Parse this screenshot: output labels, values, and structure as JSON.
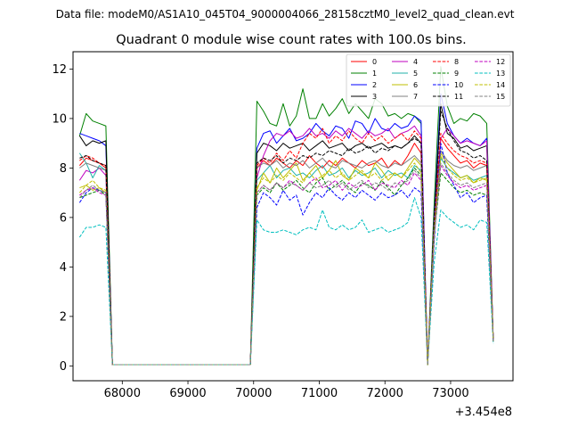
{
  "chart_data": {
    "type": "line",
    "suptitle": "Data file: modeM0/AS1A10_045T04_9000004066_28158cztM0_level2_quad_clean.evt",
    "title": "Quadrant 0 module wise count rates with 100.0s bins.",
    "xlabel": "",
    "ylabel": "",
    "x_offset_label": "+3.454e8",
    "xlim": [
      67250,
      73950
    ],
    "ylim": [
      -0.6,
      12.7
    ],
    "xticks": [
      68000,
      69000,
      70000,
      71000,
      72000,
      73000
    ],
    "xtick_labels": [
      "68000",
      "69000",
      "70000",
      "71000",
      "72000",
      "73000"
    ],
    "yticks": [
      0,
      2,
      4,
      6,
      8,
      10,
      12
    ],
    "ytick_labels": [
      "0",
      "2",
      "4",
      "6",
      "8",
      "10",
      "12"
    ],
    "legend_position": "top-right",
    "x": [
      67350,
      67450,
      67550,
      67650,
      67750,
      67850,
      67950,
      68050,
      68150,
      68250,
      68350,
      68450,
      68550,
      68650,
      68750,
      68850,
      68950,
      69050,
      69150,
      69250,
      69350,
      69450,
      69550,
      69650,
      69750,
      69850,
      69950,
      70050,
      70150,
      70250,
      70350,
      70450,
      70550,
      70650,
      70750,
      70850,
      70950,
      71050,
      71150,
      71250,
      71350,
      71450,
      71550,
      71650,
      71750,
      71850,
      71950,
      72050,
      72150,
      72250,
      72350,
      72450,
      72550,
      72650,
      72750,
      72850,
      72950,
      73050,
      73150,
      73250,
      73350,
      73450,
      73550,
      73650
    ],
    "series": [
      {
        "name": "0",
        "color": "#ff0000",
        "dash": "solid",
        "values": [
          8.1,
          8.4,
          8.3,
          8.2,
          8.0,
          0.05,
          0.05,
          0.05,
          0.05,
          0.05,
          0.05,
          0.05,
          0.05,
          0.05,
          0.05,
          0.05,
          0.05,
          0.05,
          0.05,
          0.05,
          0.05,
          0.05,
          0.05,
          0.05,
          0.05,
          0.05,
          0.05,
          8.0,
          8.3,
          8.1,
          8.4,
          8.2,
          8.0,
          8.3,
          8.1,
          8.5,
          8.2,
          8.0,
          8.3,
          8.1,
          8.4,
          8.2,
          8.0,
          8.3,
          8.1,
          8.2,
          8.4,
          8.0,
          8.3,
          8.1,
          8.5,
          9.0,
          8.6,
          0.05,
          5.5,
          9.2,
          8.8,
          8.5,
          8.2,
          8.3,
          8.0,
          8.2,
          8.1,
          1.0
        ]
      },
      {
        "name": "1",
        "color": "#008000",
        "dash": "solid",
        "values": [
          9.3,
          10.2,
          9.9,
          9.8,
          9.7,
          0.05,
          0.05,
          0.05,
          0.05,
          0.05,
          0.05,
          0.05,
          0.05,
          0.05,
          0.05,
          0.05,
          0.05,
          0.05,
          0.05,
          0.05,
          0.05,
          0.05,
          0.05,
          0.05,
          0.05,
          0.05,
          0.05,
          10.7,
          10.3,
          9.8,
          9.7,
          10.6,
          9.7,
          10.1,
          11.2,
          10.0,
          10.0,
          10.6,
          10.1,
          10.4,
          10.8,
          10.2,
          10.6,
          10.3,
          10.0,
          10.8,
          10.6,
          10.1,
          10.2,
          10.0,
          10.2,
          10.1,
          9.8,
          0.05,
          6.6,
          12.1,
          10.5,
          9.8,
          10.0,
          9.9,
          10.2,
          10.1,
          9.8,
          1.0
        ]
      },
      {
        "name": "2",
        "color": "#0000ff",
        "dash": "solid",
        "values": [
          9.4,
          9.3,
          9.2,
          9.1,
          8.9,
          0.05,
          0.05,
          0.05,
          0.05,
          0.05,
          0.05,
          0.05,
          0.05,
          0.05,
          0.05,
          0.05,
          0.05,
          0.05,
          0.05,
          0.05,
          0.05,
          0.05,
          0.05,
          0.05,
          0.05,
          0.05,
          0.05,
          8.8,
          9.4,
          9.5,
          9.0,
          9.3,
          9.6,
          9.1,
          9.2,
          9.4,
          9.8,
          9.5,
          9.3,
          9.7,
          9.6,
          9.2,
          9.9,
          9.8,
          9.4,
          10.0,
          9.6,
          9.5,
          9.8,
          9.6,
          9.7,
          10.1,
          9.9,
          0.05,
          6.0,
          11.0,
          9.8,
          9.3,
          9.0,
          9.2,
          9.0,
          8.9,
          9.2,
          1.0
        ]
      },
      {
        "name": "3",
        "color": "#000000",
        "dash": "solid",
        "values": [
          9.3,
          8.9,
          9.1,
          9.0,
          9.1,
          0.05,
          0.05,
          0.05,
          0.05,
          0.05,
          0.05,
          0.05,
          0.05,
          0.05,
          0.05,
          0.05,
          0.05,
          0.05,
          0.05,
          0.05,
          0.05,
          0.05,
          0.05,
          0.05,
          0.05,
          0.05,
          0.05,
          8.6,
          9.0,
          8.9,
          8.7,
          9.0,
          8.8,
          8.9,
          9.0,
          8.7,
          8.9,
          9.1,
          8.8,
          8.9,
          9.0,
          8.7,
          8.9,
          9.0,
          8.8,
          8.9,
          9.0,
          8.8,
          8.9,
          8.8,
          9.0,
          9.3,
          9.0,
          0.05,
          5.8,
          10.6,
          9.4,
          9.2,
          8.8,
          8.9,
          8.7,
          8.8,
          8.9,
          1.0
        ]
      },
      {
        "name": "4",
        "color": "#bf00bf",
        "dash": "solid",
        "values": [
          7.5,
          7.9,
          7.8,
          8.0,
          7.7,
          0.05,
          0.05,
          0.05,
          0.05,
          0.05,
          0.05,
          0.05,
          0.05,
          0.05,
          0.05,
          0.05,
          0.05,
          0.05,
          0.05,
          0.05,
          0.05,
          0.05,
          0.05,
          0.05,
          0.05,
          0.05,
          0.05,
          7.6,
          8.5,
          9.1,
          9.4,
          9.3,
          9.5,
          9.2,
          9.3,
          9.6,
          9.3,
          9.4,
          9.2,
          9.5,
          9.3,
          9.6,
          9.4,
          9.2,
          9.5,
          9.3,
          9.4,
          9.6,
          9.2,
          9.4,
          9.5,
          9.7,
          9.3,
          0.05,
          5.9,
          9.2,
          9.6,
          9.3,
          9.0,
          9.1,
          9.0,
          8.9,
          9.1,
          1.0
        ]
      },
      {
        "name": "5",
        "color": "#20b2aa",
        "dash": "solid",
        "values": [
          8.6,
          8.2,
          7.6,
          8.1,
          7.9,
          0.05,
          0.05,
          0.05,
          0.05,
          0.05,
          0.05,
          0.05,
          0.05,
          0.05,
          0.05,
          0.05,
          0.05,
          0.05,
          0.05,
          0.05,
          0.05,
          0.05,
          0.05,
          0.05,
          0.05,
          0.05,
          0.05,
          7.5,
          7.8,
          8.1,
          7.6,
          7.9,
          8.0,
          7.7,
          7.8,
          7.6,
          7.9,
          8.1,
          7.7,
          7.8,
          8.0,
          7.6,
          7.9,
          7.7,
          7.8,
          8.0,
          7.6,
          7.9,
          7.7,
          7.8,
          7.6,
          8.1,
          7.9,
          0.05,
          5.4,
          8.4,
          8.0,
          7.8,
          7.6,
          7.7,
          7.5,
          7.6,
          7.7,
          1.0
        ]
      },
      {
        "name": "6",
        "color": "#bfbf00",
        "dash": "solid",
        "values": [
          7.2,
          7.3,
          7.1,
          7.2,
          7.0,
          0.05,
          0.05,
          0.05,
          0.05,
          0.05,
          0.05,
          0.05,
          0.05,
          0.05,
          0.05,
          0.05,
          0.05,
          0.05,
          0.05,
          0.05,
          0.05,
          0.05,
          0.05,
          0.05,
          0.05,
          0.05,
          0.05,
          7.1,
          7.8,
          7.4,
          8.0,
          7.6,
          7.9,
          8.2,
          7.5,
          7.8,
          8.1,
          7.6,
          7.9,
          8.3,
          7.7,
          7.5,
          8.0,
          7.8,
          7.6,
          8.2,
          7.9,
          7.5,
          7.8,
          7.6,
          8.0,
          8.4,
          8.1,
          0.05,
          5.2,
          8.6,
          8.2,
          7.9,
          7.6,
          7.7,
          7.4,
          7.6,
          7.5,
          1.0
        ]
      },
      {
        "name": "7",
        "color": "#808080",
        "dash": "solid",
        "values": [
          8.0,
          8.2,
          8.1,
          8.0,
          7.9,
          0.05,
          0.05,
          0.05,
          0.05,
          0.05,
          0.05,
          0.05,
          0.05,
          0.05,
          0.05,
          0.05,
          0.05,
          0.05,
          0.05,
          0.05,
          0.05,
          0.05,
          0.05,
          0.05,
          0.05,
          0.05,
          0.05,
          8.0,
          8.2,
          8.1,
          8.3,
          8.0,
          8.2,
          8.1,
          8.3,
          8.0,
          8.2,
          8.4,
          8.1,
          8.0,
          8.3,
          8.2,
          8.1,
          8.0,
          8.2,
          8.3,
          8.1,
          8.0,
          8.2,
          8.1,
          8.3,
          8.5,
          8.2,
          0.05,
          5.6,
          8.7,
          8.3,
          8.1,
          8.0,
          8.1,
          7.9,
          8.0,
          8.1,
          1.0
        ]
      },
      {
        "name": "8",
        "color": "#ff0000",
        "dash": "dashed",
        "values": [
          8.3,
          8.5,
          8.4,
          8.2,
          8.1,
          0.05,
          0.05,
          0.05,
          0.05,
          0.05,
          0.05,
          0.05,
          0.05,
          0.05,
          0.05,
          0.05,
          0.05,
          0.05,
          0.05,
          0.05,
          0.05,
          0.05,
          0.05,
          0.05,
          0.05,
          0.05,
          0.05,
          8.1,
          8.4,
          8.2,
          8.6,
          8.3,
          8.7,
          8.4,
          9.0,
          9.4,
          9.2,
          9.6,
          9.0,
          9.3,
          9.1,
          9.5,
          9.2,
          9.0,
          9.4,
          9.1,
          9.3,
          9.0,
          9.2,
          9.4,
          9.1,
          9.5,
          9.2,
          0.05,
          5.7,
          9.4,
          9.0,
          8.7,
          8.5,
          8.4,
          8.2,
          8.3,
          8.2,
          1.0
        ]
      },
      {
        "name": "9",
        "color": "#008000",
        "dash": "dashed",
        "values": [
          6.8,
          6.9,
          7.0,
          7.1,
          6.9,
          0.05,
          0.05,
          0.05,
          0.05,
          0.05,
          0.05,
          0.05,
          0.05,
          0.05,
          0.05,
          0.05,
          0.05,
          0.05,
          0.05,
          0.05,
          0.05,
          0.05,
          0.05,
          0.05,
          0.05,
          0.05,
          0.05,
          6.9,
          7.2,
          7.0,
          7.4,
          7.1,
          7.3,
          7.5,
          7.2,
          7.0,
          7.4,
          7.6,
          7.1,
          7.3,
          7.5,
          7.2,
          7.0,
          7.4,
          7.3,
          7.1,
          7.5,
          7.2,
          6.9,
          7.3,
          7.6,
          8.0,
          7.7,
          0.05,
          5.3,
          7.8,
          7.5,
          7.2,
          7.0,
          7.1,
          6.9,
          7.0,
          6.9,
          1.0
        ]
      },
      {
        "name": "10",
        "color": "#0000ff",
        "dash": "dashed",
        "values": [
          6.6,
          7.0,
          7.2,
          7.1,
          7.0,
          0.05,
          0.05,
          0.05,
          0.05,
          0.05,
          0.05,
          0.05,
          0.05,
          0.05,
          0.05,
          0.05,
          0.05,
          0.05,
          0.05,
          0.05,
          0.05,
          0.05,
          0.05,
          0.05,
          0.05,
          0.05,
          0.05,
          6.4,
          7.0,
          6.8,
          6.5,
          7.1,
          6.7,
          6.9,
          6.1,
          6.6,
          7.0,
          6.8,
          7.2,
          6.9,
          6.7,
          7.0,
          6.8,
          7.1,
          6.9,
          6.7,
          7.0,
          6.8,
          6.9,
          7.1,
          6.8,
          7.2,
          7.0,
          0.05,
          5.0,
          9.0,
          7.8,
          7.3,
          6.8,
          7.0,
          6.6,
          6.8,
          6.9,
          1.0
        ]
      },
      {
        "name": "11",
        "color": "#000000",
        "dash": "dashed",
        "values": [
          8.4,
          8.5,
          8.3,
          8.2,
          8.1,
          0.05,
          0.05,
          0.05,
          0.05,
          0.05,
          0.05,
          0.05,
          0.05,
          0.05,
          0.05,
          0.05,
          0.05,
          0.05,
          0.05,
          0.05,
          0.05,
          0.05,
          0.05,
          0.05,
          0.05,
          0.05,
          0.05,
          8.2,
          8.4,
          8.3,
          8.5,
          8.2,
          8.4,
          8.3,
          8.5,
          8.4,
          8.6,
          8.5,
          8.7,
          8.6,
          8.5,
          8.8,
          8.6,
          8.7,
          8.9,
          8.6,
          8.8,
          8.7,
          8.9,
          8.8,
          9.0,
          9.2,
          9.0,
          0.05,
          5.9,
          10.3,
          9.6,
          9.1,
          8.7,
          8.6,
          8.4,
          8.5,
          8.3,
          1.0
        ]
      },
      {
        "name": "12",
        "color": "#bf00bf",
        "dash": "dashed",
        "values": [
          6.9,
          7.1,
          7.2,
          7.0,
          6.9,
          0.05,
          0.05,
          0.05,
          0.05,
          0.05,
          0.05,
          0.05,
          0.05,
          0.05,
          0.05,
          0.05,
          0.05,
          0.05,
          0.05,
          0.05,
          0.05,
          0.05,
          0.05,
          0.05,
          0.05,
          0.05,
          0.05,
          7.0,
          7.3,
          7.1,
          7.4,
          7.2,
          7.5,
          7.3,
          7.1,
          7.4,
          7.6,
          7.2,
          7.3,
          7.5,
          7.1,
          7.4,
          7.2,
          7.3,
          7.5,
          7.1,
          7.4,
          7.3,
          7.2,
          7.5,
          7.3,
          7.8,
          7.5,
          0.05,
          5.3,
          8.1,
          7.7,
          7.4,
          7.2,
          7.3,
          7.1,
          7.2,
          7.3,
          1.0
        ]
      },
      {
        "name": "13",
        "color": "#00bfbf",
        "dash": "dashed",
        "values": [
          5.2,
          5.6,
          5.6,
          5.7,
          5.6,
          0.05,
          0.05,
          0.05,
          0.05,
          0.05,
          0.05,
          0.05,
          0.05,
          0.05,
          0.05,
          0.05,
          0.05,
          0.05,
          0.05,
          0.05,
          0.05,
          0.05,
          0.05,
          0.05,
          0.05,
          0.05,
          0.05,
          5.9,
          5.5,
          5.4,
          5.4,
          5.5,
          5.4,
          5.3,
          5.5,
          5.6,
          5.5,
          6.3,
          5.6,
          5.5,
          5.7,
          5.5,
          5.6,
          5.9,
          5.4,
          5.5,
          5.6,
          5.4,
          5.5,
          5.6,
          5.8,
          6.8,
          6.0,
          0.05,
          4.2,
          6.3,
          6.0,
          5.8,
          5.6,
          5.7,
          5.5,
          5.9,
          5.8,
          0.9
        ]
      },
      {
        "name": "14",
        "color": "#bfbf00",
        "dash": "dashed",
        "values": [
          7.0,
          7.3,
          7.5,
          7.2,
          7.1,
          0.05,
          0.05,
          0.05,
          0.05,
          0.05,
          0.05,
          0.05,
          0.05,
          0.05,
          0.05,
          0.05,
          0.05,
          0.05,
          0.05,
          0.05,
          0.05,
          0.05,
          0.05,
          0.05,
          0.05,
          0.05,
          0.05,
          7.2,
          7.6,
          7.4,
          7.7,
          7.5,
          7.8,
          7.6,
          7.4,
          7.8,
          7.5,
          7.7,
          7.9,
          7.6,
          7.8,
          7.5,
          7.7,
          7.9,
          7.6,
          7.8,
          7.5,
          7.7,
          7.8,
          7.6,
          7.9,
          8.2,
          7.8,
          0.05,
          5.4,
          8.5,
          8.0,
          7.7,
          7.5,
          7.6,
          7.4,
          7.5,
          7.6,
          1.0
        ]
      },
      {
        "name": "15",
        "color": "#808080",
        "dash": "dashed",
        "values": [
          6.8,
          7.1,
          7.3,
          7.1,
          7.0,
          0.05,
          0.05,
          0.05,
          0.05,
          0.05,
          0.05,
          0.05,
          0.05,
          0.05,
          0.05,
          0.05,
          0.05,
          0.05,
          0.05,
          0.05,
          0.05,
          0.05,
          0.05,
          0.05,
          0.05,
          0.05,
          0.05,
          7.0,
          7.3,
          7.1,
          7.4,
          7.2,
          7.4,
          7.3,
          7.1,
          7.4,
          7.2,
          7.3,
          7.5,
          7.2,
          7.4,
          7.1,
          7.3,
          7.5,
          7.2,
          7.4,
          7.3,
          7.1,
          7.4,
          7.3,
          7.5,
          7.9,
          7.6,
          0.05,
          5.2,
          8.2,
          7.8,
          7.5,
          7.3,
          7.4,
          7.2,
          7.3,
          7.4,
          1.0
        ]
      }
    ]
  }
}
